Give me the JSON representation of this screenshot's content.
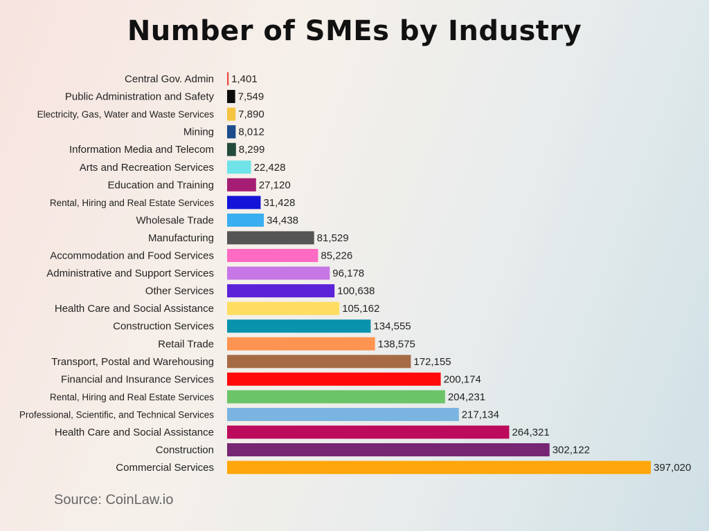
{
  "title": "Number of SMEs by Industry",
  "source": "Source: CoinLaw.io",
  "chart_data": {
    "type": "bar",
    "orientation": "horizontal",
    "title": "Number of SMEs by Industry",
    "xlabel": "",
    "ylabel": "",
    "xlim": [
      0,
      397020
    ],
    "grid": false,
    "legend": "none",
    "categories": [
      "Central Gov. Admin",
      "Public Administration and Safety",
      "Electricity, Gas, Water and Waste Services",
      "Mining",
      "Information Media and Telecom",
      "Arts and Recreation Services",
      "Education and Training",
      "Rental, Hiring and Real Estate Services",
      "Wholesale Trade",
      "Manufacturing",
      "Accommodation and Food Services",
      "Administrative and Support Services",
      "Other Services",
      "Health Care and Social Assistance",
      "Construction Services",
      "Retail Trade",
      "Transport, Postal and Warehousing",
      "Financial and Insurance Services",
      "Rental, Hiring and Real Estate Services",
      "Professional, Scientific, and Technical Services",
      "Health Care and Social Assistance",
      "Construction",
      "Commercial Services"
    ],
    "values": [
      1401,
      7549,
      7890,
      8012,
      8299,
      22428,
      27120,
      31428,
      34438,
      81529,
      85226,
      96178,
      100638,
      105162,
      134555,
      138575,
      172155,
      200174,
      204231,
      217134,
      264321,
      302122,
      397020
    ],
    "value_labels": [
      "1,401",
      "7,549",
      "7,890",
      "8,012",
      "8,299",
      "22,428",
      "27,120",
      "31,428",
      "34,438",
      "81,529",
      "85,226",
      "96,178",
      "100,638",
      "105,162",
      "134,555",
      "138,575",
      "172,155",
      "200,174",
      "204,231",
      "217,134",
      "264,321",
      "302,122",
      "397,020"
    ],
    "colors": [
      "#e8443a",
      "#0c0c0c",
      "#f5c542",
      "#1c4c8c",
      "#244a3c",
      "#6fe3e8",
      "#a61e74",
      "#1414d8",
      "#39aef0",
      "#555555",
      "#ff6ac2",
      "#c776e6",
      "#5b22d8",
      "#ffdd60",
      "#0993ad",
      "#ff9452",
      "#a66b45",
      "#ff0a0a",
      "#6cc468",
      "#7ab4e0",
      "#bc0a5c",
      "#762672",
      "#ffa60a"
    ]
  }
}
